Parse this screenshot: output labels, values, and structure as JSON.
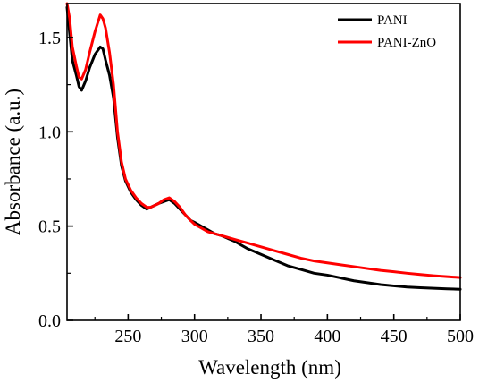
{
  "chart_data": {
    "type": "line",
    "title": "",
    "xlabel": "Wavelength (nm)",
    "ylabel": "Absorbance (a.u.)",
    "xlim": [
      204,
      500
    ],
    "ylim": [
      0,
      1.68
    ],
    "x_ticks": [
      250,
      300,
      350,
      400,
      450,
      500
    ],
    "x_tick_labels": [
      "250",
      "300",
      "350",
      "400",
      "450",
      "500"
    ],
    "y_ticks": [
      0.0,
      0.5,
      1.0,
      1.5
    ],
    "y_tick_labels": [
      "0.0",
      "0.5",
      "1.0",
      "1.5"
    ],
    "grid": false,
    "legend_position": "top-right",
    "colors": {
      "PANI": "#000000",
      "PANI-ZnO": "#ff0000"
    },
    "series": [
      {
        "name": "PANI",
        "x": [
          204,
          206,
          208,
          211,
          213,
          215,
          218,
          221,
          225,
          229,
          231,
          233,
          236,
          239,
          242,
          245,
          248,
          252,
          256,
          260,
          264,
          267,
          270,
          273,
          277,
          281,
          285,
          289,
          293,
          297,
          300,
          305,
          310,
          315,
          320,
          330,
          340,
          350,
          360,
          370,
          380,
          390,
          400,
          410,
          420,
          430,
          440,
          450,
          460,
          470,
          480,
          490,
          500
        ],
        "y": [
          1.66,
          1.52,
          1.38,
          1.3,
          1.24,
          1.22,
          1.27,
          1.34,
          1.41,
          1.45,
          1.44,
          1.38,
          1.3,
          1.18,
          0.97,
          0.82,
          0.74,
          0.68,
          0.64,
          0.61,
          0.59,
          0.6,
          0.61,
          0.62,
          0.63,
          0.64,
          0.62,
          0.59,
          0.56,
          0.53,
          0.52,
          0.5,
          0.48,
          0.46,
          0.45,
          0.42,
          0.38,
          0.35,
          0.32,
          0.29,
          0.27,
          0.25,
          0.24,
          0.225,
          0.21,
          0.2,
          0.19,
          0.183,
          0.177,
          0.173,
          0.17,
          0.167,
          0.165
        ]
      },
      {
        "name": "PANI-ZnO",
        "x": [
          204,
          206,
          208,
          211,
          213,
          215,
          218,
          221,
          225,
          229,
          231,
          233,
          236,
          239,
          242,
          245,
          248,
          252,
          256,
          260,
          264,
          267,
          270,
          273,
          277,
          281,
          285,
          289,
          293,
          297,
          300,
          305,
          310,
          315,
          320,
          330,
          340,
          350,
          360,
          370,
          380,
          390,
          400,
          410,
          420,
          430,
          440,
          450,
          460,
          470,
          480,
          490,
          500
        ],
        "y": [
          1.68,
          1.6,
          1.45,
          1.35,
          1.29,
          1.28,
          1.33,
          1.42,
          1.53,
          1.62,
          1.6,
          1.55,
          1.42,
          1.25,
          1.0,
          0.84,
          0.75,
          0.69,
          0.65,
          0.62,
          0.6,
          0.6,
          0.61,
          0.62,
          0.64,
          0.65,
          0.63,
          0.6,
          0.56,
          0.53,
          0.51,
          0.49,
          0.47,
          0.46,
          0.45,
          0.43,
          0.41,
          0.39,
          0.37,
          0.35,
          0.33,
          0.315,
          0.305,
          0.295,
          0.285,
          0.275,
          0.265,
          0.258,
          0.25,
          0.243,
          0.237,
          0.232,
          0.227
        ]
      }
    ]
  }
}
